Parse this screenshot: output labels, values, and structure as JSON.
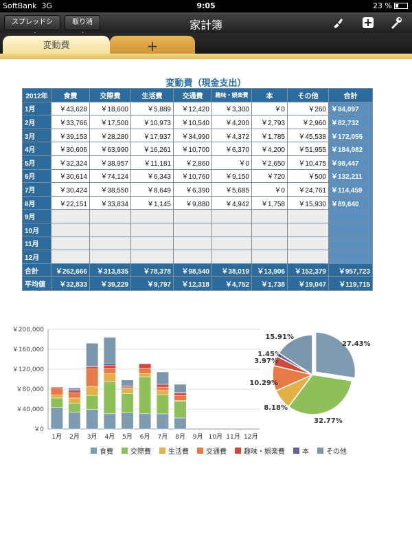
{
  "status": {
    "carrier": "SoftBank",
    "network": "3G",
    "time": "9:05",
    "battery": "23 %"
  },
  "toolbar": {
    "spreadsheet_label": "スプレッドシート",
    "undo_label": "取り消す",
    "title": "家計簿"
  },
  "tabs": [
    {
      "label": "変動費",
      "active": true
    },
    {
      "label": "+"
    }
  ],
  "table": {
    "title": "変動費（現金支出）",
    "headers": [
      "2012年",
      "食費",
      "交際費",
      "生活費",
      "交通費",
      "趣味・娯楽費",
      "本",
      "その他",
      "合計"
    ],
    "rows": [
      [
        "1月",
        "￥43,628",
        "￥18,600",
        "￥5,889",
        "￥12,420",
        "￥3,300",
        "￥0",
        "￥260",
        "￥84,097"
      ],
      [
        "2月",
        "￥33,766",
        "￥17,500",
        "￥10,973",
        "￥10,540",
        "￥4,200",
        "￥2,793",
        "￥2,960",
        "￥82,732"
      ],
      [
        "3月",
        "￥39,153",
        "￥28,280",
        "￥17,937",
        "￥34,990",
        "￥4,372",
        "￥1,785",
        "￥45,538",
        "￥172,055"
      ],
      [
        "4月",
        "￥30,606",
        "￥63,990",
        "￥16,261",
        "￥10,700",
        "￥6,370",
        "￥4,200",
        "￥51,955",
        "￥184,082"
      ],
      [
        "5月",
        "￥32,324",
        "￥38,957",
        "￥11,181",
        "￥2,860",
        "￥0",
        "￥2,650",
        "￥10,475",
        "￥98,447"
      ],
      [
        "6月",
        "￥30,614",
        "￥74,124",
        "￥6,343",
        "￥10,760",
        "￥9,150",
        "￥720",
        "￥500",
        "￥132,211"
      ],
      [
        "7月",
        "￥30,424",
        "￥38,550",
        "￥8,649",
        "￥6,390",
        "￥5,685",
        "￥0",
        "￥24,761",
        "￥114,459"
      ],
      [
        "8月",
        "￥22,151",
        "￥33,834",
        "￥1,145",
        "￥9,880",
        "￥4,942",
        "￥1,758",
        "￥15,930",
        "￥89,640"
      ],
      [
        "9月",
        "",
        "",
        "",
        "",
        "",
        "",
        "",
        ""
      ],
      [
        "10月",
        "",
        "",
        "",
        "",
        "",
        "",
        "",
        ""
      ],
      [
        "11月",
        "",
        "",
        "",
        "",
        "",
        "",
        "",
        ""
      ],
      [
        "12月",
        "",
        "",
        "",
        "",
        "",
        "",
        "",
        ""
      ]
    ],
    "sum": [
      "合計",
      "￥262,666",
      "￥313,835",
      "￥78,378",
      "￥98,540",
      "￥38,019",
      "￥13,906",
      "￥152,379",
      "￥957,723"
    ],
    "avg": [
      "平均値",
      "￥32,833",
      "￥39,229",
      "￥9,797",
      "￥12,318",
      "￥4,752",
      "￥1,738",
      "￥19,047",
      "￥119,715"
    ]
  },
  "chart_data": [
    {
      "type": "bar",
      "stacked": true,
      "categories": [
        "1月",
        "2月",
        "3月",
        "4月",
        "5月",
        "6月",
        "7月",
        "8月",
        "9月",
        "10月",
        "11月",
        "12月"
      ],
      "ylim": [
        0,
        200000
      ],
      "yticks": [
        "￥0",
        "￥40,000",
        "￥80,000",
        "￥120,000",
        "￥160,000",
        "￥200,000"
      ],
      "ytick_values": [
        0,
        40000,
        80000,
        120000,
        160000,
        200000
      ],
      "grid": true,
      "series": [
        {
          "name": "食費",
          "color": "#7f9bb0",
          "values": [
            43628,
            33766,
            39153,
            30606,
            32324,
            30614,
            30424,
            22151,
            0,
            0,
            0,
            0
          ]
        },
        {
          "name": "交際費",
          "color": "#8fbf5a",
          "values": [
            18600,
            17500,
            28280,
            63990,
            38957,
            74124,
            38550,
            33834,
            0,
            0,
            0,
            0
          ]
        },
        {
          "name": "生活費",
          "color": "#e2b14a",
          "values": [
            5889,
            10973,
            17937,
            16261,
            11181,
            6343,
            8649,
            1145,
            0,
            0,
            0,
            0
          ]
        },
        {
          "name": "交通費",
          "color": "#e87a45",
          "values": [
            12420,
            10540,
            34990,
            10700,
            2860,
            10760,
            6390,
            9880,
            0,
            0,
            0,
            0
          ]
        },
        {
          "name": "趣味・娯楽費",
          "color": "#d04a3c",
          "values": [
            3300,
            4200,
            4372,
            6370,
            0,
            9150,
            5685,
            4942,
            0,
            0,
            0,
            0
          ]
        },
        {
          "name": "本",
          "color": "#6a5d9c",
          "values": [
            0,
            2793,
            1785,
            4200,
            2650,
            720,
            0,
            1758,
            0,
            0,
            0,
            0
          ]
        },
        {
          "name": "その他",
          "color": "#7b96aa",
          "values": [
            260,
            2960,
            45538,
            51955,
            10475,
            500,
            24761,
            15930,
            0,
            0,
            0,
            0
          ]
        }
      ],
      "legend_position": "bottom"
    },
    {
      "type": "pie",
      "slices": [
        {
          "name": "食費",
          "label": "27.43%",
          "value": 27.43,
          "color": "#7f9bb0",
          "exploded": true
        },
        {
          "name": "交際費",
          "label": "32.77%",
          "value": 32.77,
          "color": "#8fbf5a"
        },
        {
          "name": "生活費",
          "label": "8.18%",
          "value": 8.18,
          "color": "#e2b14a"
        },
        {
          "name": "交通費",
          "label": "10.29%",
          "value": 10.29,
          "color": "#e87a45"
        },
        {
          "name": "趣味・娯楽費",
          "label": "3.97%",
          "value": 3.97,
          "color": "#d04a3c"
        },
        {
          "name": "本",
          "label": "1.45%",
          "value": 1.45,
          "color": "#6a5d9c"
        },
        {
          "name": "その他",
          "label": "15.91%",
          "value": 15.91,
          "color": "#7b96aa"
        }
      ]
    }
  ]
}
